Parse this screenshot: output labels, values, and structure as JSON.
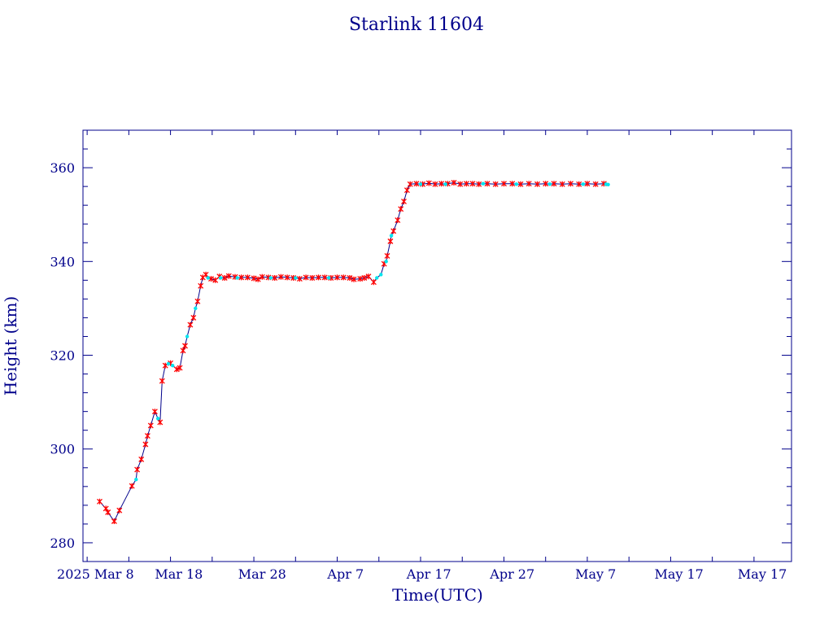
{
  "chart_data": {
    "type": "line",
    "title": "Starlink 11604",
    "xlabel": "Time(UTC)",
    "ylabel": "Height (km)",
    "xlim": [
      "2025-02-24T12:00",
      "2025-05-20T12:00"
    ],
    "ylim": [
      276,
      368
    ],
    "x_tick_labels": [
      {
        "date": "2025-02-26",
        "label": "2025 Mar  8"
      },
      {
        "date": "2025-03-08",
        "label": "Mar 18"
      },
      {
        "date": "2025-03-18",
        "label": "Mar 28"
      },
      {
        "date": "2025-03-28",
        "label": "Apr  7"
      },
      {
        "date": "2025-04-07",
        "label": "Apr 17"
      },
      {
        "date": "2025-04-17",
        "label": "Apr 27"
      },
      {
        "date": "2025-04-27",
        "label": "May  7"
      },
      {
        "date": "2025-05-07",
        "label": "May 17"
      },
      {
        "date": "2025-05-17",
        "label": "May 17"
      }
    ],
    "y_ticks": [
      280,
      300,
      320,
      340,
      360
    ],
    "grid": false,
    "marker_colors": {
      "primary": "#ff0000",
      "secondary": "#00e5ee"
    },
    "line_color": "#00008b",
    "series": [
      {
        "marker": "star",
        "points": [
          [
            "2025-02-26T12:00",
            288.8
          ],
          [
            "2025-02-27T06:00",
            287.3
          ],
          [
            "2025-02-27T12:00",
            286.5
          ],
          [
            "2025-02-28T06:00",
            284.6
          ],
          [
            "2025-02-28T21:00",
            286.9
          ],
          [
            "2025-03-02T09:00",
            292.1
          ],
          [
            "2025-03-03T00:00",
            295.6
          ],
          [
            "2025-03-03T12:00",
            297.8
          ],
          [
            "2025-03-04T00:00",
            301.0
          ],
          [
            "2025-03-04T06:00",
            302.8
          ],
          [
            "2025-03-04T15:00",
            305.0
          ],
          [
            "2025-03-05T03:00",
            308.0
          ],
          [
            "2025-03-05T18:00",
            305.7
          ],
          [
            "2025-03-06T00:00",
            314.5
          ],
          [
            "2025-03-06T09:00",
            317.8
          ],
          [
            "2025-03-07T00:00",
            318.3
          ],
          [
            "2025-03-07T18:00",
            317.0
          ],
          [
            "2025-03-08T03:00",
            317.3
          ],
          [
            "2025-03-08T12:00",
            321.0
          ],
          [
            "2025-03-08T18:00",
            322.0
          ],
          [
            "2025-03-09T09:00",
            326.5
          ],
          [
            "2025-03-09T18:00",
            328.0
          ],
          [
            "2025-03-10T06:00",
            331.5
          ],
          [
            "2025-03-10T15:00",
            334.8
          ],
          [
            "2025-03-10T21:00",
            336.6
          ],
          [
            "2025-03-11T06:00",
            337.2
          ],
          [
            "2025-03-11T21:00",
            336.3
          ],
          [
            "2025-03-12T09:00",
            336.0
          ],
          [
            "2025-03-12T21:00",
            336.8
          ],
          [
            "2025-03-13T12:00",
            336.5
          ],
          [
            "2025-03-14T00:00",
            336.9
          ],
          [
            "2025-03-14T18:00",
            336.7
          ],
          [
            "2025-03-15T12:00",
            336.6
          ],
          [
            "2025-03-16T06:00",
            336.6
          ],
          [
            "2025-03-17T00:00",
            336.4
          ],
          [
            "2025-03-17T12:00",
            336.2
          ],
          [
            "2025-03-18T00:00",
            336.7
          ],
          [
            "2025-03-18T18:00",
            336.6
          ],
          [
            "2025-03-19T12:00",
            336.5
          ],
          [
            "2025-03-20T06:00",
            336.7
          ],
          [
            "2025-03-21T00:00",
            336.6
          ],
          [
            "2025-03-21T18:00",
            336.5
          ],
          [
            "2025-03-22T12:00",
            336.3
          ],
          [
            "2025-03-23T06:00",
            336.6
          ],
          [
            "2025-03-24T00:00",
            336.5
          ],
          [
            "2025-03-24T18:00",
            336.6
          ],
          [
            "2025-03-25T12:00",
            336.6
          ],
          [
            "2025-03-26T06:00",
            336.5
          ],
          [
            "2025-03-27T00:00",
            336.6
          ],
          [
            "2025-03-27T18:00",
            336.6
          ],
          [
            "2025-03-28T12:00",
            336.5
          ],
          [
            "2025-03-29T00:00",
            336.2
          ],
          [
            "2025-03-29T18:00",
            336.3
          ],
          [
            "2025-03-30T06:00",
            336.5
          ],
          [
            "2025-03-30T18:00",
            336.8
          ],
          [
            "2025-03-31T09:00",
            335.6
          ],
          [
            "2025-04-01T15:00",
            339.5
          ],
          [
            "2025-04-02T00:00",
            341.2
          ],
          [
            "2025-04-02T09:00",
            344.3
          ],
          [
            "2025-04-02T18:00",
            346.5
          ],
          [
            "2025-04-03T06:00",
            348.8
          ],
          [
            "2025-04-03T15:00",
            351.2
          ],
          [
            "2025-04-04T00:00",
            352.8
          ],
          [
            "2025-04-04T09:00",
            355.2
          ],
          [
            "2025-04-04T18:00",
            356.5
          ],
          [
            "2025-04-05T12:00",
            356.6
          ],
          [
            "2025-04-06T06:00",
            356.5
          ],
          [
            "2025-04-07T00:00",
            356.7
          ],
          [
            "2025-04-07T18:00",
            356.5
          ],
          [
            "2025-04-08T12:00",
            356.6
          ],
          [
            "2025-04-09T06:00",
            356.6
          ],
          [
            "2025-04-10T00:00",
            356.8
          ],
          [
            "2025-04-10T18:00",
            356.5
          ],
          [
            "2025-04-11T12:00",
            356.6
          ],
          [
            "2025-04-12T06:00",
            356.6
          ],
          [
            "2025-04-13T00:00",
            356.5
          ],
          [
            "2025-04-14T00:00",
            356.6
          ],
          [
            "2025-04-15T00:00",
            356.5
          ],
          [
            "2025-04-16T00:00",
            356.6
          ],
          [
            "2025-04-17T00:00",
            356.6
          ],
          [
            "2025-04-18T00:00",
            356.5
          ],
          [
            "2025-04-19T00:00",
            356.6
          ],
          [
            "2025-04-20T00:00",
            356.5
          ],
          [
            "2025-04-21T00:00",
            356.6
          ],
          [
            "2025-04-22T00:00",
            356.6
          ],
          [
            "2025-04-23T00:00",
            356.5
          ],
          [
            "2025-04-24T00:00",
            356.6
          ],
          [
            "2025-04-25T00:00",
            356.5
          ],
          [
            "2025-04-26T00:00",
            356.6
          ],
          [
            "2025-04-27T00:00",
            356.5
          ],
          [
            "2025-04-28T00:00",
            356.6
          ]
        ]
      },
      {
        "marker": "dot",
        "points": [
          [
            "2025-03-02T21:00",
            293.5
          ],
          [
            "2025-03-05T12:00",
            306.5
          ],
          [
            "2025-03-06T18:00",
            318.2
          ],
          [
            "2025-03-07T06:00",
            317.8
          ],
          [
            "2025-03-09T00:00",
            324.0
          ],
          [
            "2025-03-10T00:00",
            330.0
          ],
          [
            "2025-03-11T12:00",
            336.5
          ],
          [
            "2025-03-13T00:00",
            336.5
          ],
          [
            "2025-03-15T00:00",
            336.5
          ],
          [
            "2025-03-19T00:00",
            336.5
          ],
          [
            "2025-03-22T00:00",
            336.5
          ],
          [
            "2025-03-26T00:00",
            336.5
          ],
          [
            "2025-03-31T18:00",
            336.5
          ],
          [
            "2025-04-01T06:00",
            337.2
          ],
          [
            "2025-04-01T21:00",
            340.0
          ],
          [
            "2025-04-02T12:00",
            345.5
          ],
          [
            "2025-04-06T00:00",
            356.5
          ],
          [
            "2025-04-09T00:00",
            356.5
          ],
          [
            "2025-04-13T12:00",
            356.6
          ],
          [
            "2025-04-17T12:00",
            356.5
          ],
          [
            "2025-04-21T12:00",
            356.5
          ],
          [
            "2025-04-25T12:00",
            356.5
          ],
          [
            "2025-04-28T06:00",
            356.5
          ],
          [
            "2025-04-28T12:00",
            356.4
          ]
        ]
      }
    ]
  }
}
